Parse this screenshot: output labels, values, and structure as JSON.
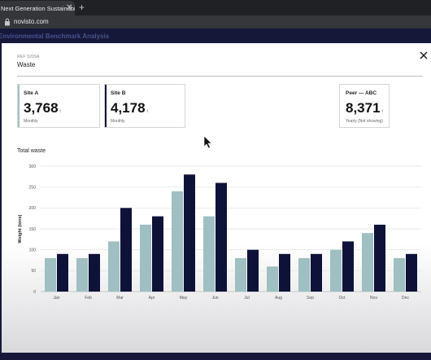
{
  "browser": {
    "tab_title": "Next Generation Sustainability",
    "url": "novisto.com"
  },
  "app": {
    "page_title": "Environmental Benchmark Analysis"
  },
  "modal": {
    "ref": "REF 5209A",
    "title": "Waste"
  },
  "cards": [
    {
      "label": "Site A",
      "value": "3,768",
      "unit": "t",
      "sub": "Monthly",
      "accent": "#9fbfc2"
    },
    {
      "label": "Site B",
      "value": "4,178",
      "unit": "t",
      "sub": "Monthly",
      "accent": "#0f1238"
    },
    {
      "label": "Peer — ABC",
      "value": "8,371",
      "unit": "t",
      "sub": "Yearly (Not showing)",
      "accent": ""
    }
  ],
  "chart_data": {
    "type": "bar",
    "title": "Total waste",
    "ylabel": "Weight (tons)",
    "ylim": [
      0,
      300
    ],
    "yticks": [
      0,
      50,
      100,
      150,
      200,
      250,
      300
    ],
    "categories": [
      "Jan",
      "Feb",
      "Mar",
      "Apr",
      "May",
      "Jun",
      "Jul",
      "Aug",
      "Sep",
      "Oct",
      "Nov",
      "Dec"
    ],
    "series": [
      {
        "values": [
          80,
          80,
          120,
          160,
          240,
          180,
          80,
          60,
          80,
          100,
          140,
          80
        ],
        "color": "#9fbfc2"
      },
      {
        "values": [
          90,
          90,
          200,
          180,
          280,
          260,
          100,
          90,
          90,
          120,
          160,
          90
        ],
        "color": "#0f1238"
      }
    ],
    "grid": true
  }
}
